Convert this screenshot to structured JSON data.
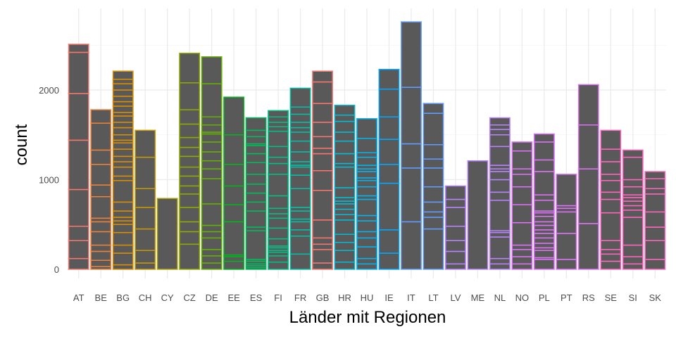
{
  "chart_data": {
    "type": "bar",
    "stacked": true,
    "xlabel": "Länder mit Regionen",
    "ylabel": "count",
    "ylim": [
      0,
      2800
    ],
    "yticks": [
      0,
      1000,
      2000
    ],
    "grid": true,
    "legend": "none",
    "bar_fill": "#595959",
    "categories": [
      "AT",
      "BE",
      "BG",
      "CH",
      "CY",
      "CZ",
      "DE",
      "EE",
      "ES",
      "FI",
      "FR",
      "GB",
      "HR",
      "HU",
      "IE",
      "IT",
      "LT",
      "LV",
      "ME",
      "NL",
      "NO",
      "PL",
      "PT",
      "RS",
      "SE",
      "SI",
      "SK"
    ],
    "outline_colors": [
      "#F8766D",
      "#EC8239",
      "#DB8E00",
      "#C79800",
      "#AEA200",
      "#8FAA00",
      "#64B200",
      "#00B81B",
      "#00BD5C",
      "#00C085",
      "#00C1A7",
      "#F8766D",
      "#00BCD6",
      "#00B4EF",
      "#00A9FF",
      "#619CFF",
      "#619CFF",
      "#B983FF",
      "#B983FF",
      "#B983FF",
      "#DE71F9",
      "#DE71F9",
      "#DE71F9",
      "#DE71F9",
      "#FF65BE",
      "#FF65BE",
      "#FF65BE"
    ],
    "values": [
      2510,
      1780,
      2210,
      1550,
      790,
      2410,
      2370,
      1920,
      1690,
      1770,
      2020,
      2210,
      1830,
      1680,
      2230,
      2760,
      1850,
      930,
      1210,
      1690,
      1420,
      1510,
      1060,
      2060,
      1550,
      1330,
      1090
    ],
    "segments": [
      [
        120,
        320,
        480,
        890,
        1440,
        1960,
        2420,
        2510
      ],
      [
        30,
        100,
        200,
        270,
        420,
        530,
        570,
        810,
        940,
        1170,
        1330,
        1630,
        1780
      ],
      [
        50,
        180,
        270,
        410,
        500,
        540,
        580,
        650,
        750,
        990,
        1040,
        1140,
        1200,
        1260,
        1340,
        1410,
        1440,
        1500,
        1580,
        1640,
        1710,
        1750,
        1820,
        1870,
        1930,
        2000,
        2070,
        2120,
        2210
      ],
      [
        70,
        210,
        450,
        690,
        900,
        1250,
        1550
      ],
      [
        790
      ],
      [
        280,
        420,
        530,
        690,
        840,
        930,
        1040,
        1140,
        1260,
        1360,
        1470,
        1620,
        1780,
        2080,
        2410
      ],
      [
        70,
        150,
        220,
        350,
        420,
        490,
        730,
        1010,
        1120,
        1210,
        1310,
        1420,
        1510,
        1530,
        1610,
        1700,
        2070,
        2370
      ],
      [
        90,
        140,
        160,
        530,
        720,
        930,
        1170,
        1500,
        1920
      ],
      [
        20,
        40,
        60,
        90,
        110,
        430,
        470,
        650,
        750,
        850,
        950,
        1060,
        1190,
        1290,
        1380,
        1400,
        1480,
        1550,
        1690
      ],
      [
        80,
        150,
        190,
        210,
        240,
        260,
        340,
        460,
        570,
        620,
        680,
        820,
        1060,
        1180,
        1250,
        1370,
        1540,
        1590,
        1640,
        1700,
        1770
      ],
      [
        170,
        370,
        440,
        530,
        560,
        650,
        690,
        900,
        1050,
        1140,
        1160,
        1200,
        1310,
        1430,
        1530,
        1580,
        1640,
        1730,
        1810,
        2020
      ],
      [
        70,
        220,
        280,
        350,
        550,
        880,
        1100,
        1290,
        1350,
        1480,
        1640,
        1850,
        2090,
        2210
      ],
      [
        80,
        210,
        300,
        390,
        550,
        610,
        670,
        730,
        760,
        800,
        910,
        1140,
        1180,
        1290,
        1430,
        1530,
        1650,
        1720,
        1830
      ],
      [
        60,
        120,
        250,
        350,
        420,
        540,
        600,
        780,
        820,
        920,
        990,
        1020,
        1090,
        1120,
        1160,
        1250,
        1300,
        1460,
        1680
      ],
      [
        180,
        440,
        960,
        1170,
        1450,
        1700,
        2010,
        2230
      ],
      [
        530,
        1130,
        1400,
        2030,
        2760
      ],
      [
        450,
        580,
        640,
        750,
        920,
        1130,
        1230,
        1390,
        1740,
        1850
      ],
      [
        60,
        200,
        320,
        480,
        690,
        780,
        930
      ],
      [
        1210
      ],
      [
        60,
        120,
        360,
        410,
        430,
        770,
        860,
        1000,
        1090,
        1120,
        1160,
        1370,
        1500,
        1560,
        1610,
        1690
      ],
      [
        60,
        140,
        220,
        270,
        520,
        720,
        920,
        1060,
        1120,
        1320,
        1420
      ],
      [
        110,
        130,
        210,
        240,
        290,
        350,
        400,
        440,
        490,
        530,
        590,
        630,
        650,
        770,
        830,
        1090,
        1220,
        1420,
        1510
      ],
      [
        110,
        400,
        640,
        680,
        710,
        1060
      ],
      [
        510,
        1120,
        1610,
        2060
      ],
      [
        90,
        170,
        220,
        320,
        630,
        780,
        860,
        990,
        1060,
        1200,
        1340,
        1550
      ],
      [
        60,
        140,
        270,
        580,
        660,
        710,
        760,
        800,
        830,
        920,
        1000,
        1250,
        1330
      ],
      [
        110,
        320,
        470,
        640,
        840,
        900,
        1010,
        1090
      ]
    ]
  }
}
